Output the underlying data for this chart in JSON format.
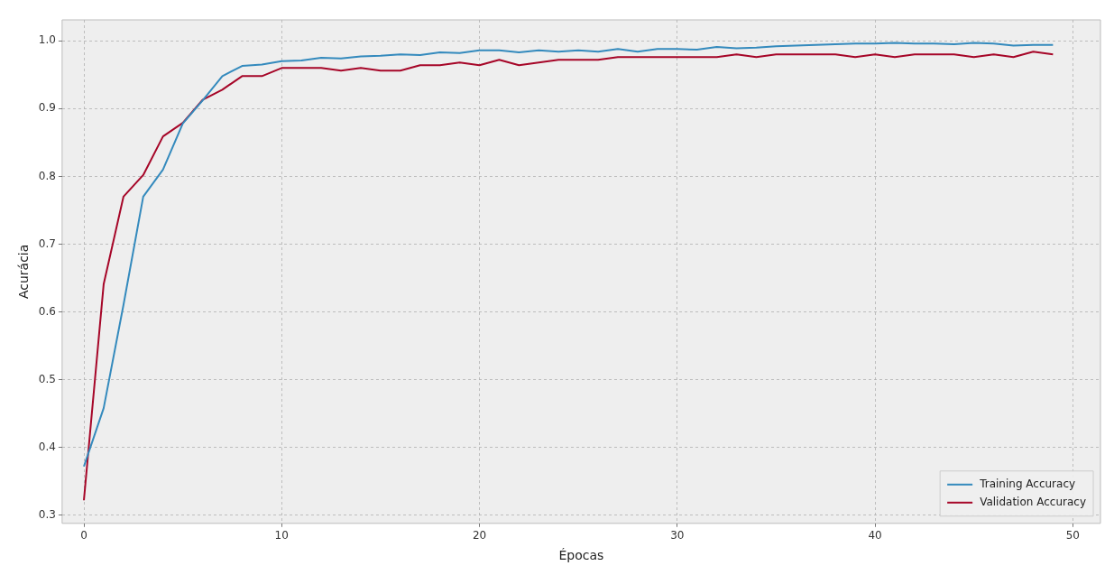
{
  "chart_data": {
    "type": "line",
    "xlabel": "Épocas",
    "ylabel": "Acurácia",
    "x": [
      0,
      1,
      2,
      3,
      4,
      5,
      6,
      7,
      8,
      9,
      10,
      11,
      12,
      13,
      14,
      15,
      16,
      17,
      18,
      19,
      20,
      21,
      22,
      23,
      24,
      25,
      26,
      27,
      28,
      29,
      30,
      31,
      32,
      33,
      34,
      35,
      36,
      37,
      38,
      39,
      40,
      41,
      42,
      43,
      44,
      45,
      46,
      47,
      48,
      49
    ],
    "series": [
      {
        "name": "Training Accuracy",
        "color": "#348abd",
        "values": [
          0.372,
          0.458,
          0.61,
          0.77,
          0.81,
          0.878,
          0.912,
          0.948,
          0.963,
          0.965,
          0.97,
          0.971,
          0.975,
          0.974,
          0.977,
          0.978,
          0.98,
          0.979,
          0.983,
          0.982,
          0.986,
          0.986,
          0.983,
          0.986,
          0.984,
          0.986,
          0.984,
          0.988,
          0.984,
          0.988,
          0.988,
          0.987,
          0.991,
          0.989,
          0.99,
          0.992,
          0.993,
          0.994,
          0.995,
          0.996,
          0.996,
          0.997,
          0.996,
          0.996,
          0.995,
          0.997,
          0.996,
          0.993,
          0.994,
          0.994
        ]
      },
      {
        "name": "Validation Accuracy",
        "color": "#a60628",
        "values": [
          0.322,
          0.641,
          0.77,
          0.802,
          0.859,
          0.879,
          0.913,
          0.928,
          0.948,
          0.948,
          0.96,
          0.96,
          0.96,
          0.956,
          0.96,
          0.956,
          0.956,
          0.964,
          0.964,
          0.968,
          0.964,
          0.972,
          0.964,
          0.968,
          0.972,
          0.972,
          0.972,
          0.976,
          0.976,
          0.976,
          0.976,
          0.976,
          0.976,
          0.98,
          0.976,
          0.98,
          0.98,
          0.98,
          0.98,
          0.976,
          0.98,
          0.976,
          0.98,
          0.98,
          0.98,
          0.976,
          0.98,
          0.976,
          0.984,
          0.98
        ]
      }
    ],
    "xlim": [
      -1.1,
      51.4
    ],
    "xticks": [
      0,
      10,
      20,
      30,
      40,
      50
    ],
    "ylim": [
      0.288,
      1.031
    ],
    "yticks": [
      {
        "value": 0.3,
        "label": "0.3"
      },
      {
        "value": 0.4,
        "label": "0.4"
      },
      {
        "value": 0.5,
        "label": "0.5"
      },
      {
        "value": 0.6,
        "label": "0.6"
      },
      {
        "value": 0.7,
        "label": "0.7"
      },
      {
        "value": 0.8,
        "label": "0.8"
      },
      {
        "value": 0.9,
        "label": "0.9"
      },
      {
        "value": 1,
        "label": "1.0"
      }
    ],
    "grid": true,
    "legend": "bottom right",
    "line_style": "solid",
    "marker": "none"
  }
}
